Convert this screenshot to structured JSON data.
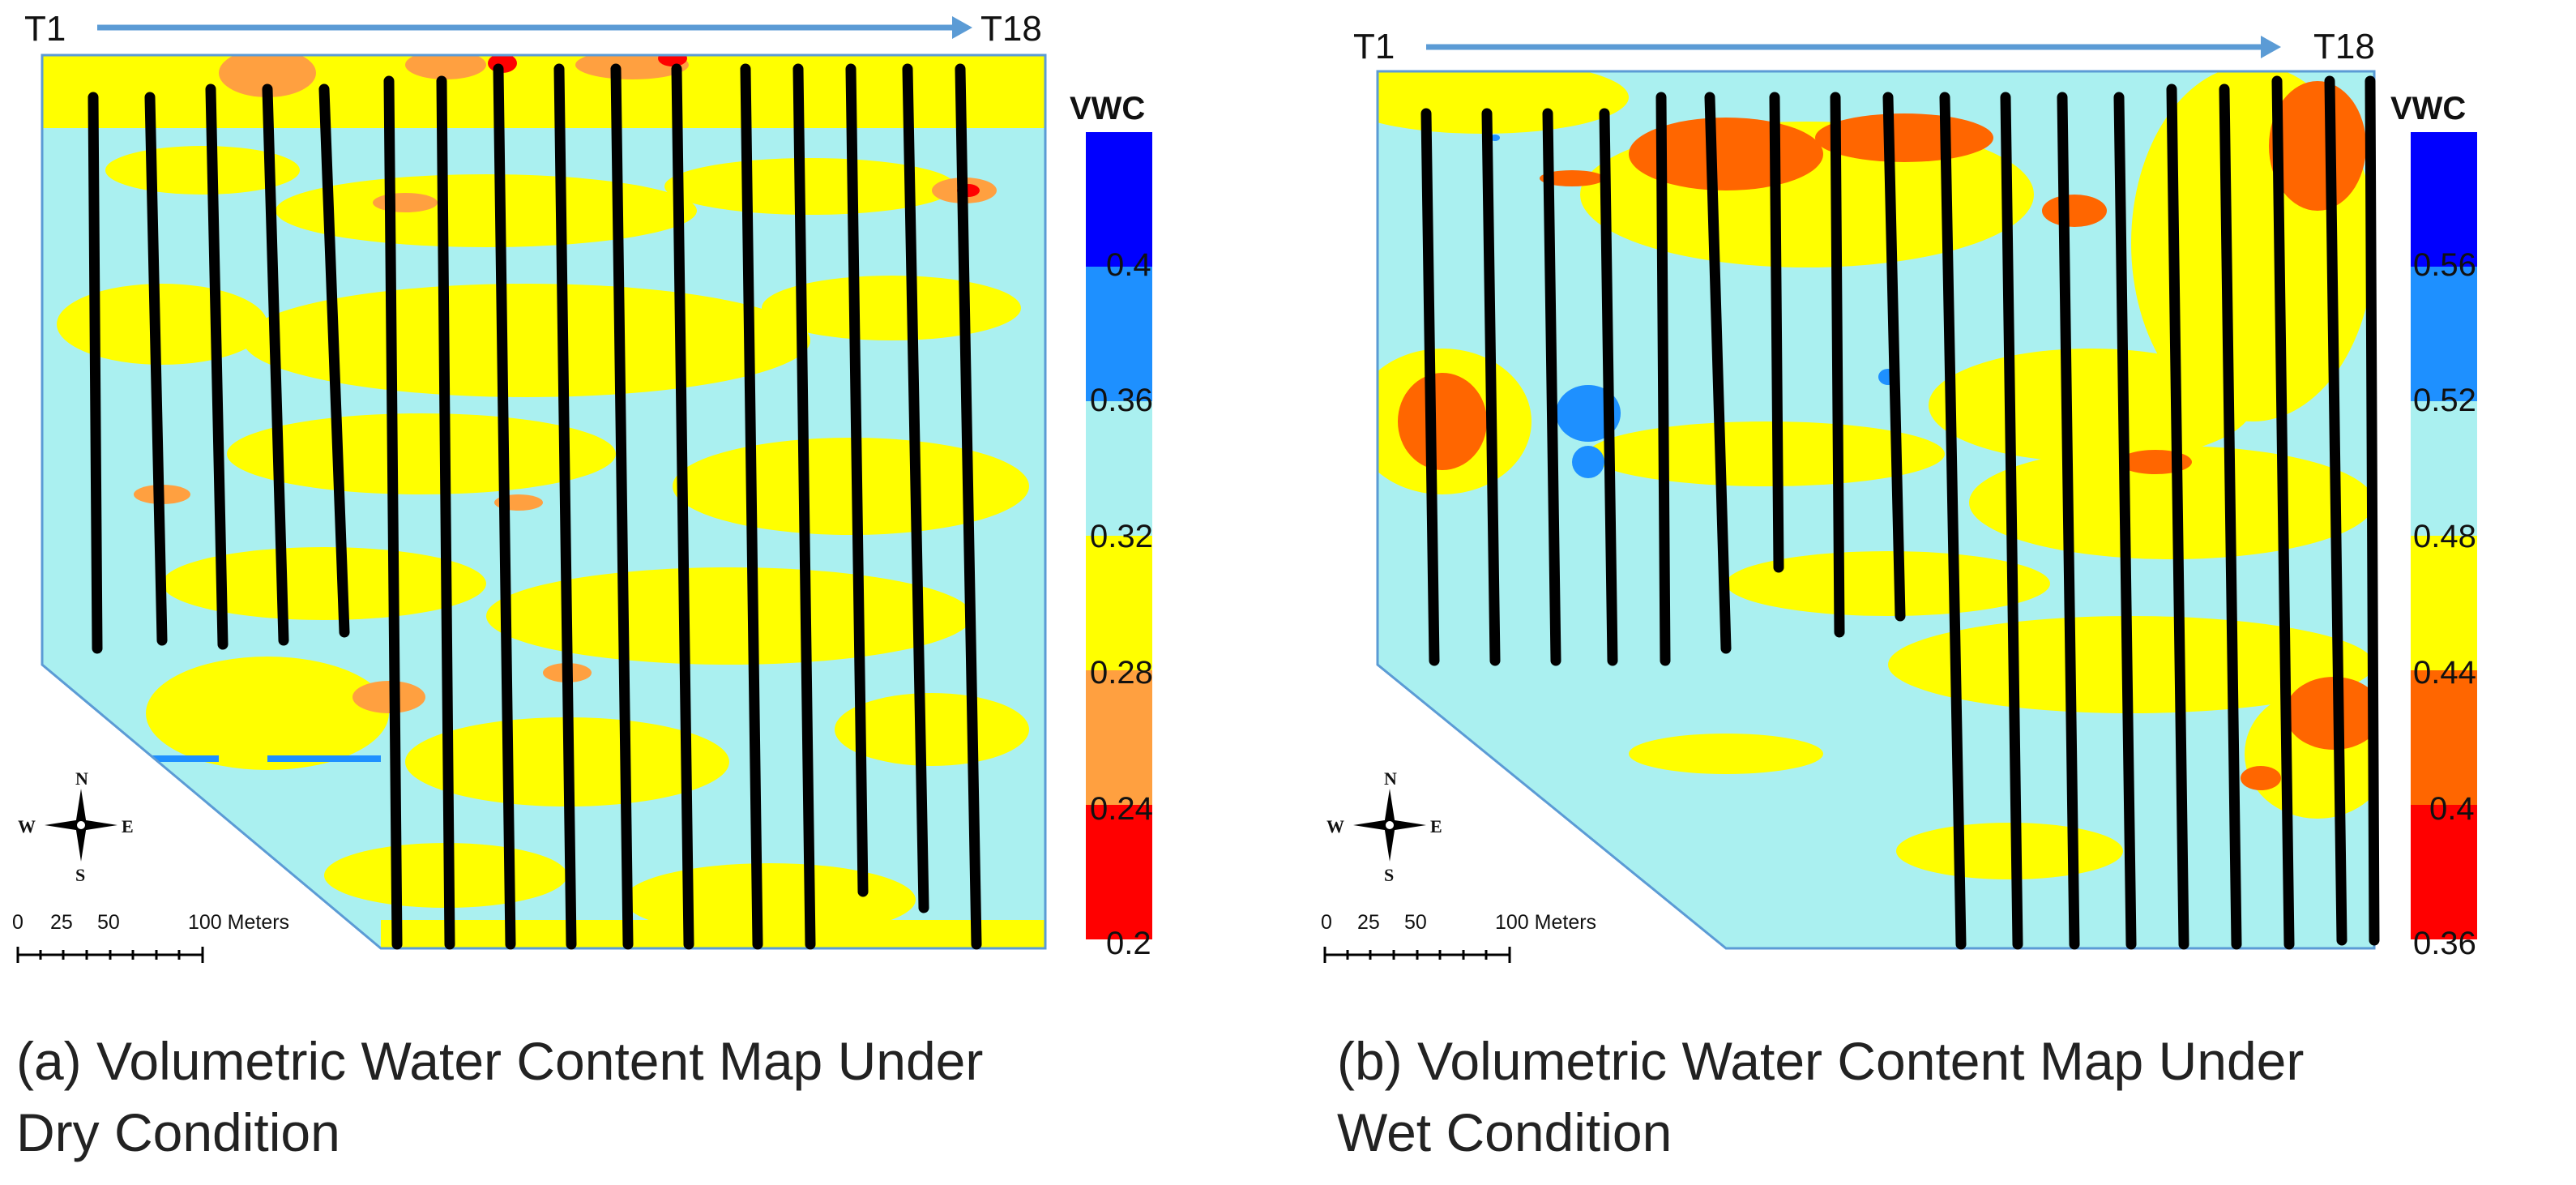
{
  "panels": [
    {
      "id": "a",
      "start_label": "T1",
      "end_label": "T18",
      "legend": {
        "title": "VWC",
        "ticks": [
          "0.4",
          "0.36",
          "0.32",
          "0.28",
          "0.24",
          "0.2"
        ],
        "colors": [
          "#0000ff",
          "#1e90ff",
          "#aaf0f0",
          "#ffff00",
          "#ffa040",
          "#ff0000"
        ]
      },
      "scale_bar": {
        "label_0": "0",
        "label_25": "25",
        "label_50": "50",
        "label_100": "100 Meters"
      },
      "compass": {
        "n": "N",
        "s": "S",
        "e": "E",
        "w": "W"
      },
      "caption": "(a) Volumetric Water Content Map Under\nDry Condition"
    },
    {
      "id": "b",
      "start_label": "T1",
      "end_label": "T18",
      "legend": {
        "title": "VWC",
        "ticks": [
          "0.56",
          "0.52",
          "0.48",
          "0.44",
          "0.4",
          "0.36"
        ],
        "colors": [
          "#0000ff",
          "#1e90ff",
          "#aaf0f0",
          "#ffff00",
          "#ff6600",
          "#ff0000"
        ]
      },
      "scale_bar": {
        "label_0": "0",
        "label_25": "25",
        "label_50": "50",
        "label_100": "100 Meters"
      },
      "compass": {
        "n": "N",
        "s": "S",
        "e": "E",
        "w": "W"
      },
      "caption": "(b) Volumetric Water Content Map Under\nWet Condition"
    }
  ]
}
